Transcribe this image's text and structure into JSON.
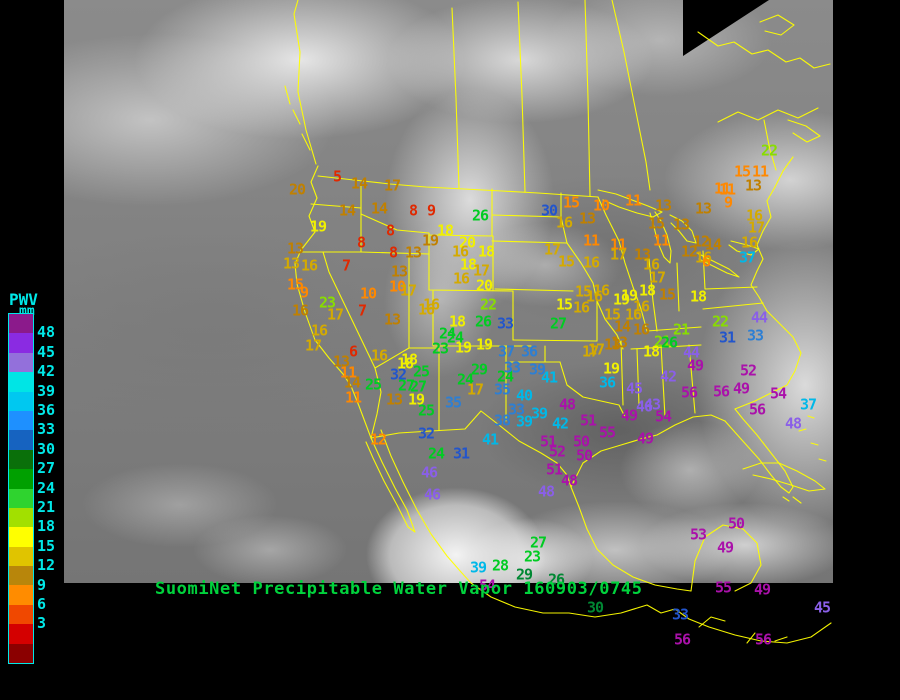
{
  "legend": {
    "title": "PWV",
    "unit": "mm",
    "text_color": "#00e8e8",
    "labels": [
      "48",
      "45",
      "42",
      "39",
      "36",
      "33",
      "30",
      "27",
      "24",
      "21",
      "18",
      "15",
      "12",
      "9",
      "6",
      "3"
    ],
    "colors": [
      "#8b1a8b",
      "#8a2be2",
      "#9370db",
      "#00e5e5",
      "#00c8f0",
      "#1e90ff",
      "#1663c0",
      "#0a700a",
      "#00a000",
      "#2fd32f",
      "#a2e000",
      "#ffff00",
      "#e0c400",
      "#b8860b",
      "#ff8c00",
      "#f04800",
      "#d40000",
      "#8b0000"
    ]
  },
  "footer": {
    "title": "SuomiNet Precipitable Water Vapor 160903/0745",
    "color": "#00d23c"
  },
  "map": {
    "outline_color": "#ffff00",
    "background": "#000000"
  },
  "palette": {
    "red": "#e02800",
    "orn": "#ff8800",
    "gld": "#c08000",
    "dky": "#d4aa00",
    "yel": "#f0f000",
    "ygr": "#88dd00",
    "grn": "#00cc22",
    "dgr": "#008833",
    "dbl": "#2255cc",
    "blu": "#2d7fd4",
    "cyn": "#00b8e8",
    "vio": "#8a5fe8",
    "mag": "#aa11aa"
  },
  "stations": [
    [
      5,
      337,
      177,
      "red"
    ],
    [
      20,
      297,
      190,
      "gld"
    ],
    [
      14,
      359,
      184,
      "gld"
    ],
    [
      17,
      392,
      186,
      "gld"
    ],
    [
      14,
      347,
      211,
      "gld"
    ],
    [
      14,
      379,
      209,
      "gld"
    ],
    [
      8,
      413,
      211,
      "red"
    ],
    [
      9,
      431,
      211,
      "red"
    ],
    [
      26,
      480,
      216,
      "grn"
    ],
    [
      19,
      318,
      227,
      "yel"
    ],
    [
      8,
      390,
      231,
      "red"
    ],
    [
      18,
      445,
      231,
      "yel"
    ],
    [
      19,
      430,
      241,
      "gld"
    ],
    [
      20,
      467,
      243,
      "yel"
    ],
    [
      8,
      361,
      243,
      "red"
    ],
    [
      13,
      295,
      249,
      "gld"
    ],
    [
      8,
      393,
      253,
      "red"
    ],
    [
      13,
      413,
      253,
      "gld"
    ],
    [
      16,
      460,
      252,
      "dky"
    ],
    [
      18,
      486,
      252,
      "yel"
    ],
    [
      13,
      291,
      264,
      "dky"
    ],
    [
      16,
      309,
      266,
      "dky"
    ],
    [
      7,
      346,
      266,
      "red"
    ],
    [
      13,
      399,
      272,
      "gld"
    ],
    [
      18,
      468,
      265,
      "yel"
    ],
    [
      17,
      481,
      271,
      "dky"
    ],
    [
      16,
      461,
      279,
      "dky"
    ],
    [
      20,
      484,
      286,
      "yel"
    ],
    [
      15,
      295,
      285,
      "orn"
    ],
    [
      9,
      304,
      293,
      "orn"
    ],
    [
      10,
      368,
      294,
      "orn"
    ],
    [
      10,
      397,
      287,
      "orn"
    ],
    [
      17,
      408,
      291,
      "dky"
    ],
    [
      23,
      327,
      303,
      "ygr"
    ],
    [
      16,
      300,
      311,
      "gld"
    ],
    [
      17,
      335,
      315,
      "dky"
    ],
    [
      7,
      362,
      311,
      "red"
    ],
    [
      13,
      392,
      320,
      "gld"
    ],
    [
      16,
      426,
      310,
      "dky"
    ],
    [
      18,
      457,
      322,
      "yel"
    ],
    [
      26,
      483,
      322,
      "grn"
    ],
    [
      33,
      505,
      324,
      "dbl"
    ],
    [
      24,
      447,
      334,
      "grn"
    ],
    [
      22,
      488,
      305,
      "ygr"
    ],
    [
      16,
      431,
      305,
      "dky"
    ],
    [
      16,
      319,
      331,
      "dky"
    ],
    [
      17,
      313,
      346,
      "dky"
    ],
    [
      6,
      353,
      352,
      "red"
    ],
    [
      16,
      379,
      356,
      "dky"
    ],
    [
      18,
      409,
      360,
      "yel"
    ],
    [
      13,
      341,
      362,
      "gld"
    ],
    [
      11,
      348,
      373,
      "orn"
    ],
    [
      32,
      398,
      375,
      "dbl"
    ],
    [
      25,
      421,
      372,
      "grn"
    ],
    [
      27,
      418,
      387,
      "grn"
    ],
    [
      24,
      465,
      380,
      "grn"
    ],
    [
      29,
      479,
      370,
      "grn"
    ],
    [
      24,
      505,
      377,
      "grn"
    ],
    [
      23,
      440,
      349,
      "grn"
    ],
    [
      19,
      463,
      348,
      "yel"
    ],
    [
      24,
      455,
      338,
      "grn"
    ],
    [
      19,
      484,
      345,
      "yel"
    ],
    [
      14,
      352,
      383,
      "gld"
    ],
    [
      25,
      373,
      385,
      "grn"
    ],
    [
      27,
      406,
      386,
      "grn"
    ],
    [
      11,
      353,
      398,
      "orn"
    ],
    [
      13,
      394,
      400,
      "gld"
    ],
    [
      19,
      416,
      400,
      "yel"
    ],
    [
      25,
      426,
      411,
      "grn"
    ],
    [
      12,
      378,
      440,
      "orn"
    ],
    [
      32,
      426,
      434,
      "dbl"
    ],
    [
      24,
      436,
      454,
      "grn"
    ],
    [
      31,
      461,
      454,
      "dbl"
    ],
    [
      46,
      429,
      473,
      "vio"
    ],
    [
      46,
      432,
      495,
      "vio"
    ],
    [
      17,
      475,
      390,
      "dky"
    ],
    [
      35,
      453,
      403,
      "blu"
    ],
    [
      37,
      506,
      352,
      "blu"
    ],
    [
      36,
      529,
      352,
      "blu"
    ],
    [
      18,
      405,
      364,
      "yel"
    ],
    [
      33,
      512,
      368,
      "blu"
    ],
    [
      39,
      537,
      370,
      "blu"
    ],
    [
      41,
      549,
      378,
      "cyn"
    ],
    [
      35,
      502,
      390,
      "blu"
    ],
    [
      40,
      524,
      396,
      "cyn"
    ],
    [
      33,
      516,
      410,
      "blu"
    ],
    [
      39,
      539,
      414,
      "cyn"
    ],
    [
      38,
      502,
      421,
      "blu"
    ],
    [
      39,
      524,
      422,
      "cyn"
    ],
    [
      42,
      560,
      424,
      "cyn"
    ],
    [
      41,
      490,
      440,
      "cyn"
    ],
    [
      17,
      590,
      352,
      "dky"
    ],
    [
      13,
      612,
      345,
      "gld"
    ],
    [
      19,
      611,
      369,
      "yel"
    ],
    [
      36,
      607,
      383,
      "cyn"
    ],
    [
      45,
      634,
      389,
      "vio"
    ],
    [
      48,
      567,
      405,
      "mag"
    ],
    [
      46,
      644,
      407,
      "vio"
    ],
    [
      43,
      652,
      405,
      "vio"
    ],
    [
      49,
      629,
      416,
      "mag"
    ],
    [
      54,
      663,
      417,
      "mag"
    ],
    [
      51,
      588,
      421,
      "mag"
    ],
    [
      51,
      548,
      442,
      "mag"
    ],
    [
      50,
      581,
      442,
      "mag"
    ],
    [
      55,
      607,
      433,
      "mag"
    ],
    [
      49,
      645,
      439,
      "mag"
    ],
    [
      52,
      557,
      452,
      "mag"
    ],
    [
      50,
      584,
      456,
      "mag"
    ],
    [
      51,
      554,
      470,
      "mag"
    ],
    [
      48,
      569,
      481,
      "mag"
    ],
    [
      48,
      546,
      492,
      "vio"
    ],
    [
      30,
      549,
      211,
      "dbl"
    ],
    [
      15,
      571,
      203,
      "orn"
    ],
    [
      16,
      564,
      223,
      "dky"
    ],
    [
      13,
      587,
      219,
      "gld"
    ],
    [
      10,
      601,
      206,
      "orn"
    ],
    [
      17,
      552,
      250,
      "dky"
    ],
    [
      15,
      566,
      262,
      "dky"
    ],
    [
      16,
      591,
      263,
      "dky"
    ],
    [
      15,
      564,
      305,
      "yel"
    ],
    [
      16,
      581,
      308,
      "dky"
    ],
    [
      27,
      558,
      324,
      "grn"
    ],
    [
      15,
      612,
      315,
      "dky"
    ],
    [
      16,
      633,
      315,
      "dky"
    ],
    [
      14,
      622,
      327,
      "gld"
    ],
    [
      16,
      641,
      330,
      "gld"
    ],
    [
      13,
      619,
      343,
      "gld"
    ],
    [
      17,
      596,
      350,
      "dky"
    ],
    [
      15,
      583,
      292,
      "dky"
    ],
    [
      16,
      601,
      291,
      "dky"
    ],
    [
      16,
      594,
      297,
      "dky"
    ],
    [
      19,
      621,
      300,
      "yel"
    ],
    [
      11,
      591,
      241,
      "orn"
    ],
    [
      11,
      618,
      245,
      "orn"
    ],
    [
      17,
      618,
      255,
      "dky"
    ],
    [
      13,
      642,
      255,
      "gld"
    ],
    [
      11,
      633,
      201,
      "orn"
    ],
    [
      13,
      663,
      206,
      "gld"
    ],
    [
      15,
      656,
      224,
      "gld"
    ],
    [
      13,
      681,
      225,
      "gld"
    ],
    [
      11,
      661,
      241,
      "orn"
    ],
    [
      12,
      701,
      242,
      "gld"
    ],
    [
      14,
      713,
      245,
      "gld"
    ],
    [
      12,
      689,
      252,
      "gld"
    ],
    [
      16,
      651,
      265,
      "dky"
    ],
    [
      16,
      703,
      258,
      "dky"
    ],
    [
      37,
      747,
      258,
      "cyn"
    ],
    [
      16,
      749,
      243,
      "dky"
    ],
    [
      17,
      657,
      278,
      "dky"
    ],
    [
      6,
      706,
      262,
      "orn"
    ],
    [
      19,
      629,
      296,
      "yel"
    ],
    [
      18,
      647,
      291,
      "yel"
    ],
    [
      15,
      667,
      295,
      "gld"
    ],
    [
      18,
      698,
      297,
      "yel"
    ],
    [
      16,
      641,
      307,
      "dky"
    ],
    [
      21,
      662,
      342,
      "ygr"
    ],
    [
      11,
      727,
      190,
      "orn"
    ],
    [
      9,
      728,
      203,
      "orn"
    ],
    [
      13,
      703,
      209,
      "gld"
    ],
    [
      15,
      742,
      172,
      "orn"
    ],
    [
      11,
      760,
      172,
      "orn"
    ],
    [
      11,
      722,
      189,
      "orn"
    ],
    [
      13,
      753,
      186,
      "gld"
    ],
    [
      22,
      769,
      151,
      "ygr"
    ],
    [
      16,
      754,
      216,
      "dky"
    ],
    [
      17,
      756,
      228,
      "dky"
    ],
    [
      21,
      681,
      330,
      "ygr"
    ],
    [
      22,
      720,
      322,
      "ygr"
    ],
    [
      44,
      759,
      318,
      "vio"
    ],
    [
      31,
      727,
      338,
      "dbl"
    ],
    [
      33,
      755,
      336,
      "blu"
    ],
    [
      26,
      669,
      343,
      "grn"
    ],
    [
      18,
      651,
      352,
      "yel"
    ],
    [
      44,
      691,
      353,
      "vio"
    ],
    [
      49,
      695,
      366,
      "mag"
    ],
    [
      52,
      748,
      371,
      "mag"
    ],
    [
      42,
      668,
      377,
      "vio"
    ],
    [
      56,
      689,
      393,
      "mag"
    ],
    [
      56,
      721,
      392,
      "mag"
    ],
    [
      49,
      741,
      389,
      "mag"
    ],
    [
      54,
      778,
      394,
      "mag"
    ],
    [
      56,
      757,
      410,
      "mag"
    ],
    [
      37,
      808,
      405,
      "cyn"
    ],
    [
      48,
      793,
      424,
      "vio"
    ],
    [
      53,
      698,
      535,
      "mag"
    ],
    [
      50,
      736,
      524,
      "mag"
    ],
    [
      49,
      725,
      548,
      "mag"
    ],
    [
      55,
      723,
      588,
      "mag"
    ],
    [
      49,
      762,
      590,
      "mag"
    ],
    [
      45,
      822,
      608,
      "vio"
    ],
    [
      33,
      680,
      615,
      "dbl"
    ],
    [
      56,
      682,
      640,
      "mag"
    ],
    [
      56,
      763,
      640,
      "mag"
    ],
    [
      30,
      595,
      608,
      "dgr"
    ],
    [
      27,
      538,
      543,
      "grn"
    ],
    [
      23,
      532,
      557,
      "grn"
    ],
    [
      29,
      524,
      575,
      "dgr"
    ],
    [
      26,
      556,
      580,
      "dgr"
    ],
    [
      39,
      478,
      568,
      "cyn"
    ],
    [
      28,
      500,
      566,
      "grn"
    ],
    [
      54,
      487,
      586,
      "mag"
    ]
  ]
}
